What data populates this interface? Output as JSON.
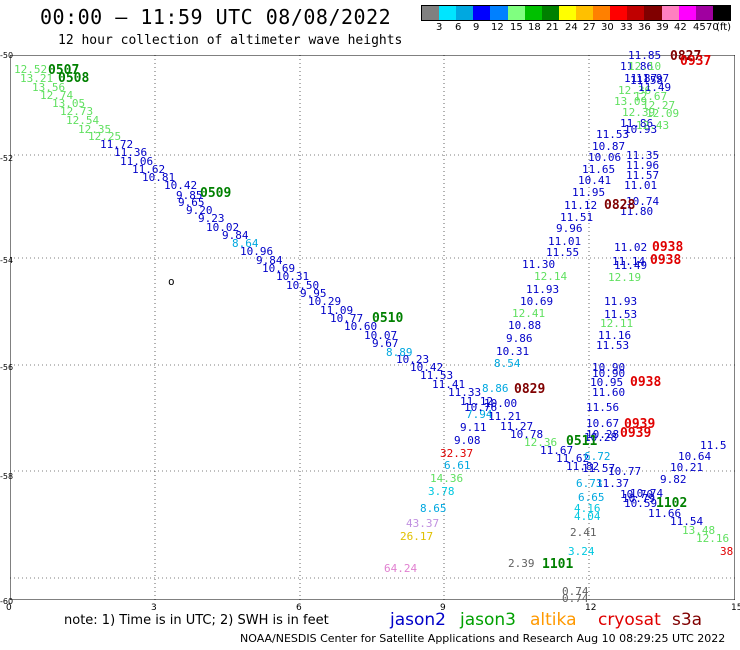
{
  "header": {
    "title": "00:00 – 11:59 UTC 08/08/2022",
    "subtitle": "12 hour collection of altimeter wave heights"
  },
  "scale": {
    "colors": [
      "#808080",
      "#00e5ff",
      "#00a8e0",
      "#0000ff",
      "#0080ff",
      "#80ff80",
      "#00c000",
      "#008000",
      "#ffff00",
      "#ffc000",
      "#ff8000",
      "#ff0000",
      "#c00000",
      "#800000",
      "#ff80c0",
      "#ff00ff",
      "#a000a0",
      "#000000"
    ],
    "labels": [
      "3",
      "6",
      "9",
      "12",
      "15",
      "18",
      "21",
      "24",
      "27",
      "30",
      "33",
      "36",
      "39",
      "42",
      "45",
      "70",
      "(ft)"
    ]
  },
  "axes": {
    "y_labels": [
      "-50",
      "-52",
      "-54",
      "-56",
      "-58",
      "-60"
    ],
    "x_labels": [
      "0",
      "3",
      "6",
      "9",
      "12",
      "15"
    ]
  },
  "note": "note: 1) Time is in UTC; 2) SWH is in feet",
  "satellites": [
    {
      "name": "jason2",
      "color": "#0000c8"
    },
    {
      "name": "jason3",
      "color": "#00a000"
    },
    {
      "name": "altika",
      "color": "#ff9900"
    },
    {
      "name": "cryosat",
      "color": "#e00000"
    },
    {
      "name": "s3a",
      "color": "#800000"
    }
  ],
  "credit": "NOAA/NESDIS Center for Satellite Applications and Research   Aug 10 08:29:25 UTC 2022",
  "marker": "o",
  "track1": {
    "color": "#0000c8",
    "values": [
      "12.52",
      "13.21",
      "13.56",
      "12.74",
      "13.05",
      "12.73",
      "12.54",
      "12.35",
      "12.25",
      "11.72",
      "11.36",
      "11.06",
      "11.62",
      "10.81",
      "10.42",
      "9.85",
      "9.65",
      "9.20",
      "9.23",
      "10.02",
      "9.84",
      "8.64",
      "10.96",
      "9.84",
      "10.69",
      "10.31",
      "10.50",
      "9.95",
      "10.29",
      "11.09",
      "10.77",
      "10.60",
      "10.07",
      "9.67",
      "8.89",
      "10.23",
      "10.42",
      "11.53",
      "11.41",
      "11.33",
      "11.12",
      "7.94",
      "10.76",
      "11.21",
      "11.27",
      "10.78",
      "12.36",
      "11.67",
      "11.62",
      "11.82",
      "11.57",
      "11.37",
      "10.79"
    ]
  },
  "track2": {
    "color": "#0000c8",
    "values": [
      "9.11",
      "9.08",
      "32.37",
      "6.61",
      "14.36",
      "3.78",
      "8.65",
      "43.37",
      "26.17",
      "64.24",
      "8.54",
      "8.86",
      "10.00",
      "10.31",
      "9.86",
      "10.88",
      "12.41",
      "10.69",
      "11.93",
      "12.14",
      "11.30",
      "11.55",
      "11.01",
      "9.96",
      "11.51",
      "11.12",
      "11.95",
      "10.41",
      "11.65",
      "10.06",
      "10.87",
      "11.53",
      "11.86",
      "12.39",
      "13.09",
      "12.36",
      "11.87",
      "11.86",
      "11.85",
      "12.10",
      "11.97",
      "11.49",
      "11.58"
    ]
  },
  "track3": {
    "values": [
      "11.35",
      "11.96",
      "11.57",
      "11.01",
      "10.74",
      "11.80",
      "11.02",
      "11.14",
      "11.49",
      "12.19",
      "11.93",
      "11.53",
      "12.11",
      "11.16",
      "11.53",
      "10.90",
      "10.90",
      "10.95",
      "11.60",
      "11.56",
      "10.67",
      "10.28",
      "10.28",
      "6.72",
      "6.73",
      "6.65",
      "4.16",
      "4.04",
      "2.41",
      "2.39",
      "3.24",
      "0.74",
      "0.74",
      "10.77",
      "10.70",
      "10.59",
      "10.74",
      "9.82",
      "10.21",
      "10.64",
      "11.5",
      "11.66",
      "11.54",
      "13.48",
      "12.16",
      "38",
      "12.67",
      "12.27",
      "12.09",
      "10.93",
      "12.43"
    ]
  },
  "time_labels": [
    {
      "text": "0507",
      "color": "#008000"
    },
    {
      "text": "0508",
      "color": "#008000"
    },
    {
      "text": "0509",
      "color": "#008000"
    },
    {
      "text": "0510",
      "color": "#008000"
    },
    {
      "text": "0829",
      "color": "#800000"
    },
    {
      "text": "0511",
      "color": "#008000"
    },
    {
      "text": "1101",
      "color": "#008000"
    },
    {
      "text": "1102",
      "color": "#008000"
    },
    {
      "text": "0828",
      "color": "#800000"
    },
    {
      "text": "0827",
      "color": "#800000"
    },
    {
      "text": "0937",
      "color": "#e00000"
    },
    {
      "text": "0938",
      "color": "#e00000"
    },
    {
      "text": "0938",
      "color": "#e00000"
    },
    {
      "text": "0938",
      "color": "#e00000"
    },
    {
      "text": "0939",
      "color": "#e00000"
    },
    {
      "text": "0939",
      "color": "#e00000"
    }
  ]
}
